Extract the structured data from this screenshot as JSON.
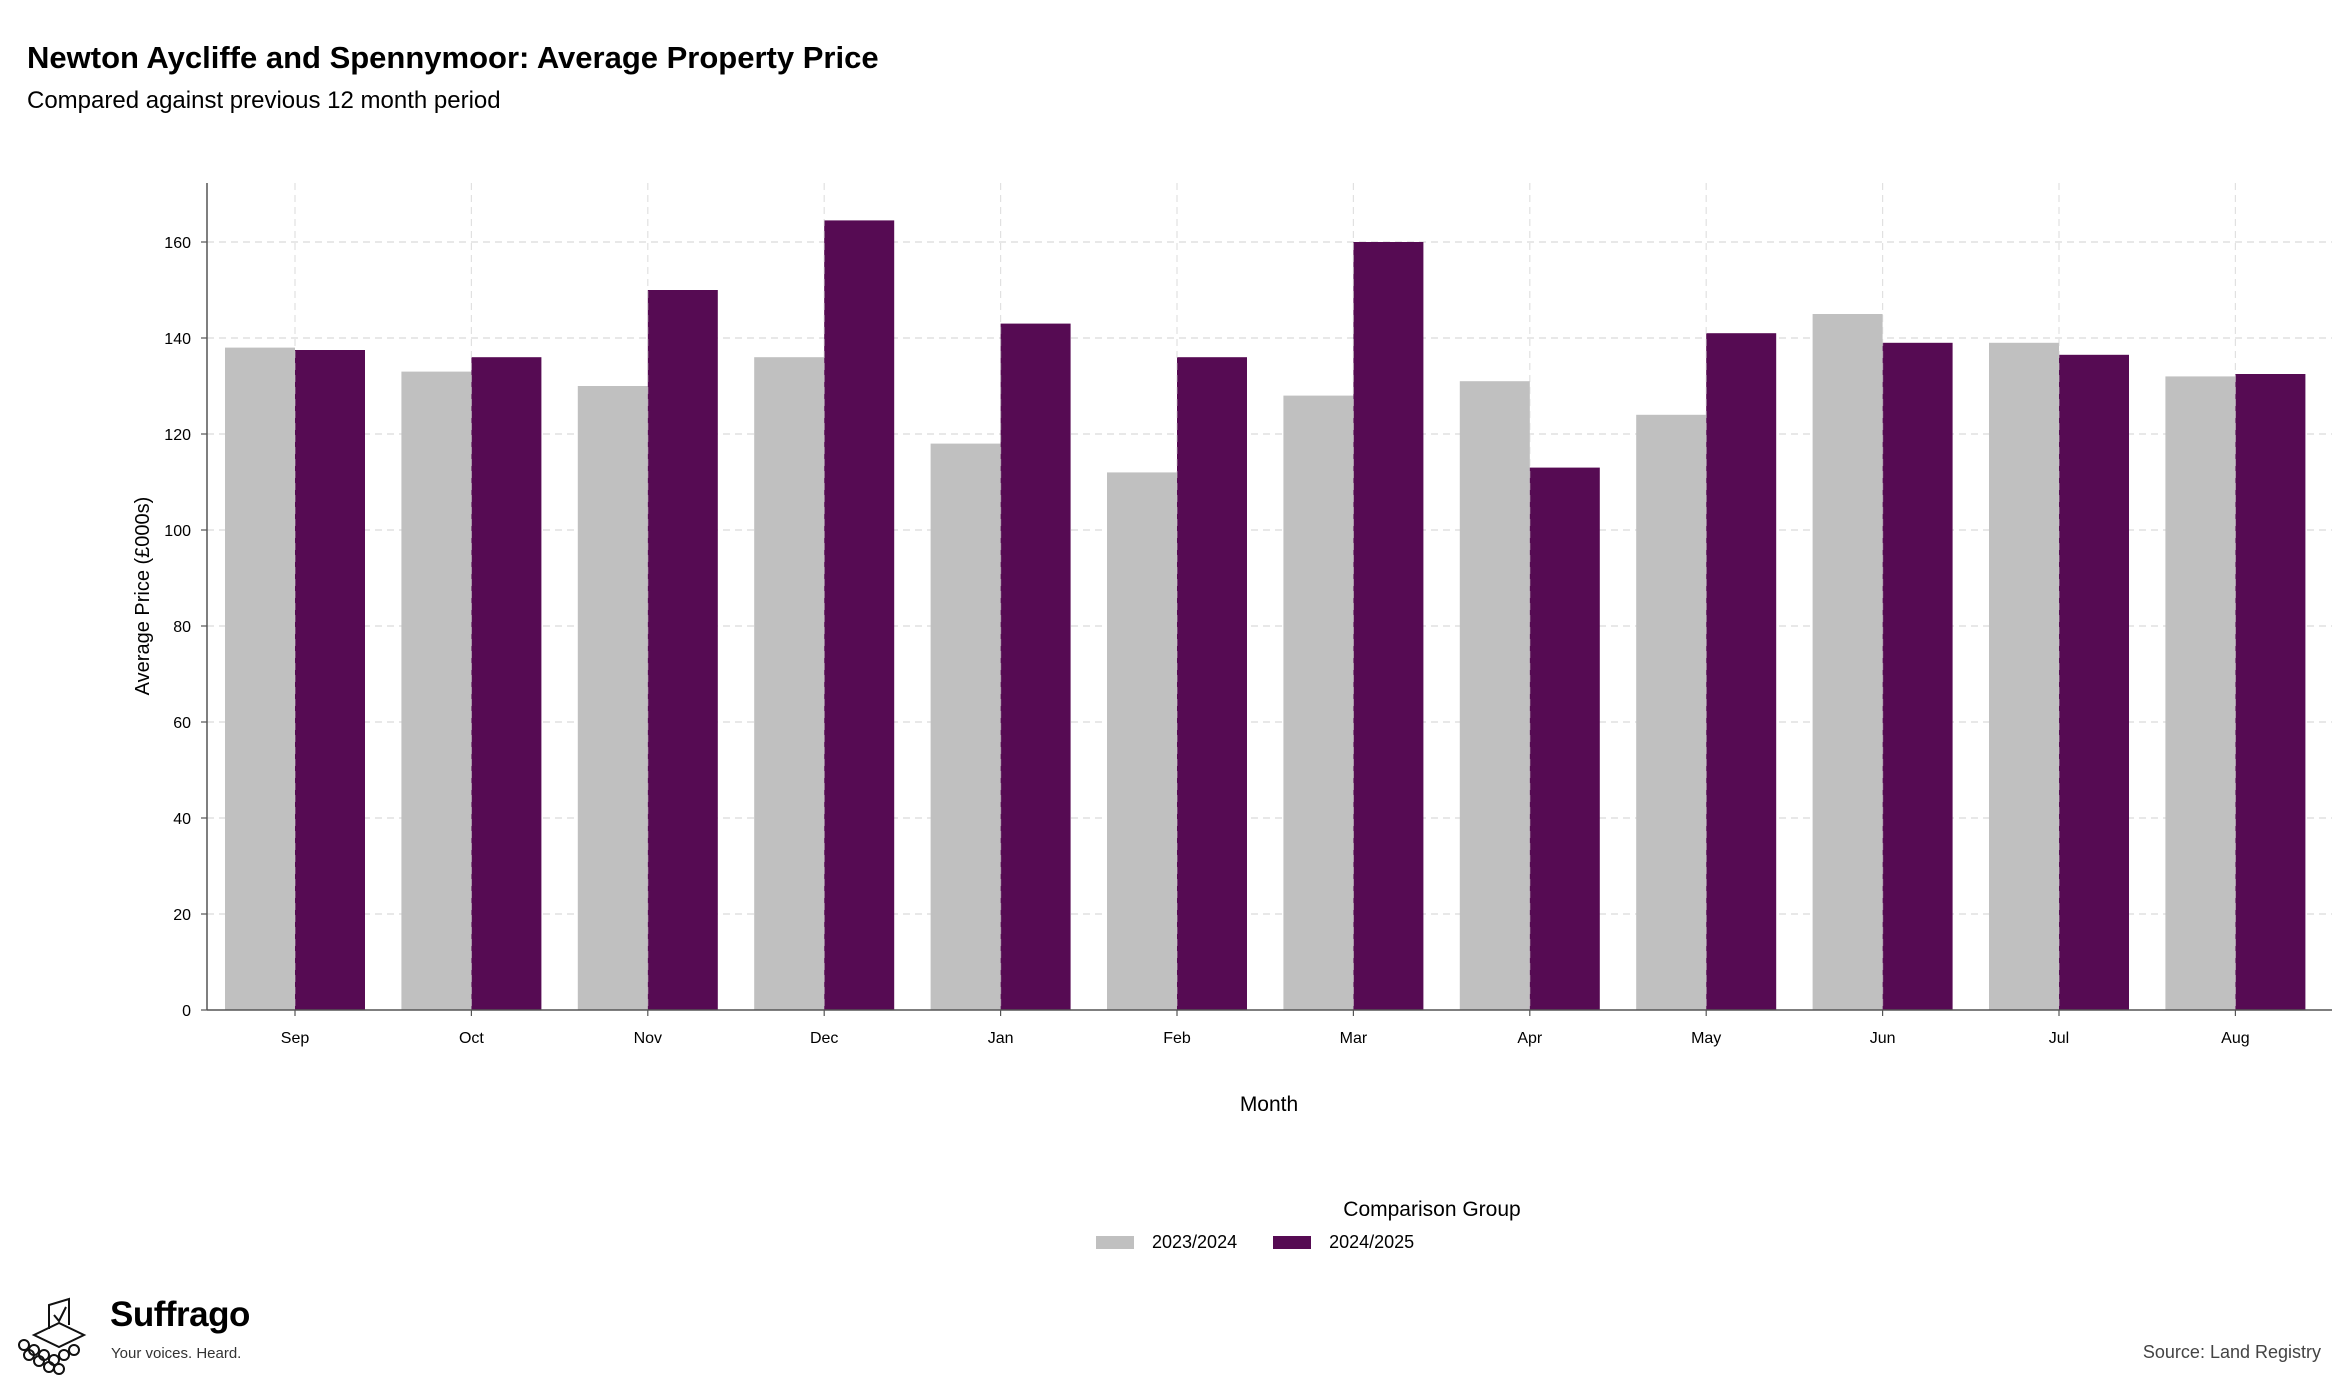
{
  "chart_data": {
    "type": "bar",
    "title": "Newton Aycliffe and Spennymoor: Average Property Price",
    "subtitle": "Compared against previous 12 month period",
    "xlabel": "Month",
    "ylabel": "Average Price (£000s)",
    "categories": [
      "Sep",
      "Oct",
      "Nov",
      "Dec",
      "Jan",
      "Feb",
      "Mar",
      "Apr",
      "May",
      "Jun",
      "Jul",
      "Aug"
    ],
    "series": [
      {
        "name": "2023/2024",
        "color": "#c0c0c0",
        "values": [
          138,
          133,
          130,
          136,
          118,
          112,
          128,
          131,
          124,
          145,
          139,
          132
        ]
      },
      {
        "name": "2024/2025",
        "color": "#560b53",
        "values": [
          137.5,
          136,
          150,
          164.5,
          143,
          136,
          160,
          113,
          141,
          139,
          136.5,
          132.5
        ]
      }
    ],
    "ylim": [
      0,
      173
    ],
    "yticks": [
      0,
      20,
      40,
      60,
      80,
      100,
      120,
      140,
      160
    ],
    "grid": true,
    "legend": {
      "title": "Comparison Group",
      "position": "bottom"
    }
  },
  "branding": {
    "name": "Suffrago",
    "tagline": "Your voices. Heard."
  },
  "source": "Source: Land Registry"
}
